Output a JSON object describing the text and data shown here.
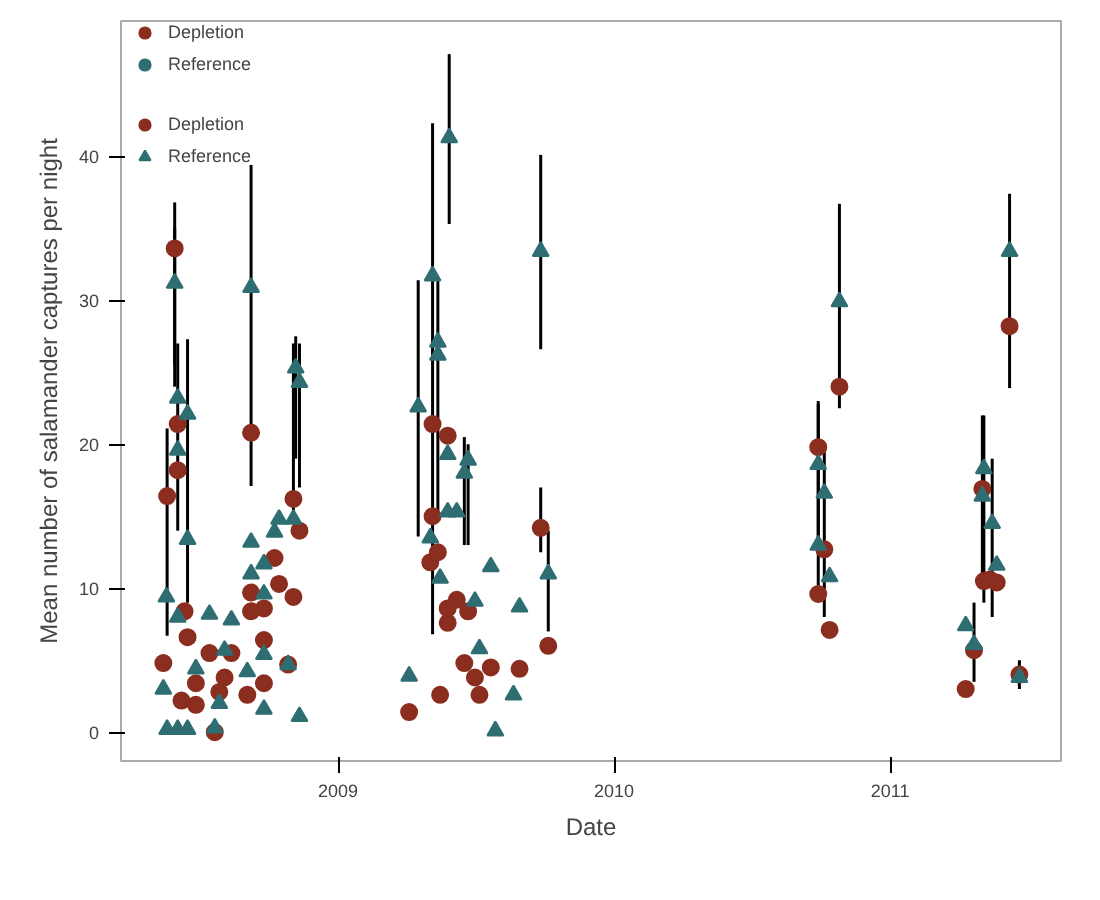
{
  "chart_data": {
    "type": "scatter",
    "xlabel": "Date",
    "ylabel": "Mean number of salamander captures per night",
    "xlim": [
      "2008-03-20",
      "2011-08-15"
    ],
    "xticks": [
      "2009",
      "2010",
      "2011"
    ],
    "ylim": [
      -2,
      49.4
    ],
    "yticks": [
      0,
      10,
      20,
      30,
      40
    ],
    "grid": false,
    "legend": "top left",
    "series": [
      {
        "name": "Depletion",
        "color": "#8b2e1f",
        "marker": "circle",
        "x": [
          "2008-05-15",
          "2008-05-20",
          "2008-05-30",
          "2008-06-03",
          "2008-06-03",
          "2008-06-08",
          "2008-06-12",
          "2008-06-16",
          "2008-06-27",
          "2008-06-27",
          "2008-07-15",
          "2008-07-22",
          "2008-07-28",
          "2008-08-04",
          "2008-08-13",
          "2008-09-03",
          "2008-09-08",
          "2008-09-08",
          "2008-09-08",
          "2008-09-25",
          "2008-09-25",
          "2008-09-25",
          "2008-10-09",
          "2008-10-15",
          "2008-10-27",
          "2008-11-03",
          "2008-11-03",
          "2008-11-11",
          "2009-04-05",
          "2009-05-06",
          "2009-05-06",
          "2009-05-03",
          "2009-05-13",
          "2009-05-16",
          "2009-05-26",
          "2009-05-26",
          "2009-05-26",
          "2009-06-07",
          "2009-06-17",
          "2009-06-22",
          "2009-07-01",
          "2009-07-07",
          "2009-07-22",
          "2009-08-29",
          "2009-09-26",
          "2009-10-06",
          "2010-09-28",
          "2010-09-28",
          "2010-10-06",
          "2010-10-13",
          "2010-10-26",
          "2011-04-11",
          "2011-04-22",
          "2011-05-03",
          "2011-05-05",
          "2011-05-13",
          "2011-05-22",
          "2011-06-08",
          "2011-06-21"
        ],
        "values": [
          4.8,
          16.4,
          33.6,
          21.4,
          18.2,
          2.2,
          8.4,
          6.6,
          3.4,
          1.9,
          5.5,
          0.0,
          2.8,
          3.8,
          5.5,
          2.6,
          20.8,
          9.7,
          8.4,
          8.6,
          6.4,
          3.4,
          12.1,
          10.3,
          4.7,
          16.2,
          9.4,
          14.0,
          1.4,
          21.4,
          15.0,
          11.8,
          12.5,
          2.6,
          20.6,
          8.6,
          7.6,
          9.2,
          4.8,
          8.4,
          3.8,
          2.6,
          4.5,
          4.4,
          14.2,
          6.0,
          19.8,
          9.6,
          12.7,
          7.1,
          24.0,
          3.0,
          5.7,
          16.9,
          10.5,
          10.6,
          10.4,
          28.2,
          4.0
        ],
        "errors": [
          null,
          [
            6.7,
            21.1
          ],
          [
            25.5,
            36.8
          ],
          null,
          null,
          null,
          null,
          null,
          null,
          null,
          null,
          null,
          null,
          null,
          null,
          null,
          null,
          null,
          null,
          null,
          null,
          null,
          null,
          null,
          null,
          null,
          null,
          null,
          null,
          null,
          null,
          null,
          null,
          null,
          null,
          null,
          null,
          null,
          null,
          null,
          null,
          null,
          null,
          null,
          [
            12.5,
            17.0
          ],
          null,
          [
            13.0,
            22.8
          ],
          null,
          null,
          null,
          null,
          null,
          null,
          null,
          null,
          null,
          null,
          null,
          null
        ]
      },
      {
        "name": "Reference",
        "color": "#2e6e73",
        "marker": "triangle",
        "x": [
          "2008-05-15",
          "2008-05-19",
          "2008-05-20",
          "2008-05-30",
          "2008-06-03",
          "2008-06-03",
          "2008-06-03",
          "2008-06-03",
          "2008-06-16",
          "2008-06-16",
          "2008-06-16",
          "2008-06-27",
          "2008-07-15",
          "2008-07-22",
          "2008-07-28",
          "2008-08-04",
          "2008-08-13",
          "2008-09-03",
          "2008-09-08",
          "2008-09-08",
          "2008-09-08",
          "2008-09-25",
          "2008-09-25",
          "2008-09-25",
          "2008-09-25",
          "2008-10-09",
          "2008-10-15",
          "2008-10-27",
          "2008-11-03",
          "2008-11-06",
          "2008-11-11",
          "2008-11-11",
          "2009-04-05",
          "2009-04-17",
          "2009-05-03",
          "2009-05-06",
          "2009-05-13",
          "2009-05-13",
          "2009-05-16",
          "2009-05-26",
          "2009-05-26",
          "2009-05-28",
          "2009-06-07",
          "2009-06-17",
          "2009-06-22",
          "2009-07-01",
          "2009-07-07",
          "2009-07-22",
          "2009-07-28",
          "2009-08-21",
          "2009-08-29",
          "2009-09-26",
          "2009-10-06",
          "2010-09-28",
          "2010-09-28",
          "2010-10-06",
          "2010-10-13",
          "2010-10-26",
          "2011-04-11",
          "2011-04-22",
          "2011-05-03",
          "2011-05-05",
          "2011-05-16",
          "2011-05-22",
          "2011-06-08",
          "2011-06-21"
        ],
        "values": [
          3.0,
          9.4,
          0.2,
          31.2,
          23.2,
          19.6,
          8.0,
          0.2,
          22.1,
          13.4,
          0.2,
          4.4,
          8.2,
          0.3,
          2.0,
          5.7,
          7.8,
          4.2,
          30.9,
          13.2,
          11.0,
          11.7,
          9.6,
          5.4,
          1.6,
          13.9,
          14.8,
          4.7,
          14.8,
          25.3,
          24.3,
          1.1,
          3.9,
          22.6,
          13.5,
          31.7,
          27.1,
          26.2,
          10.7,
          19.3,
          15.3,
          41.3,
          15.3,
          18.0,
          18.9,
          9.1,
          5.8,
          11.5,
          0.1,
          2.6,
          8.7,
          33.4,
          11.0,
          18.6,
          13.0,
          16.6,
          10.8,
          29.9,
          7.4,
          6.1,
          16.4,
          18.3,
          14.5,
          11.6,
          33.4,
          3.8
        ],
        "errors": [
          null,
          null,
          null,
          [
            24.0,
            35.0
          ],
          [
            14.0,
            27.0
          ],
          null,
          null,
          null,
          [
            9.0,
            27.3
          ],
          null,
          null,
          null,
          null,
          null,
          null,
          null,
          null,
          null,
          [
            17.1,
            39.4
          ],
          null,
          null,
          null,
          null,
          null,
          null,
          null,
          null,
          null,
          [
            15.0,
            27.0
          ],
          [
            19.0,
            27.5
          ],
          [
            17.0,
            27.0
          ],
          null,
          null,
          [
            13.6,
            31.4
          ],
          null,
          [
            6.8,
            42.3
          ],
          [
            15.0,
            31.4
          ],
          null,
          null,
          null,
          null,
          [
            35.3,
            47.1
          ],
          null,
          [
            13.0,
            20.5
          ],
          [
            13.0,
            20.0
          ],
          null,
          null,
          null,
          null,
          null,
          null,
          [
            26.6,
            40.1
          ],
          [
            7.0,
            14.0
          ],
          [
            10.0,
            23.0
          ],
          null,
          [
            8.0,
            20.0
          ],
          null,
          [
            22.5,
            36.7
          ],
          null,
          [
            3.5,
            9.0
          ],
          [
            10.0,
            22.0
          ],
          [
            9.0,
            22.0
          ],
          [
            8.0,
            19.0
          ],
          null,
          [
            23.9,
            37.4
          ],
          [
            3.0,
            5.0
          ]
        ]
      }
    ]
  }
}
